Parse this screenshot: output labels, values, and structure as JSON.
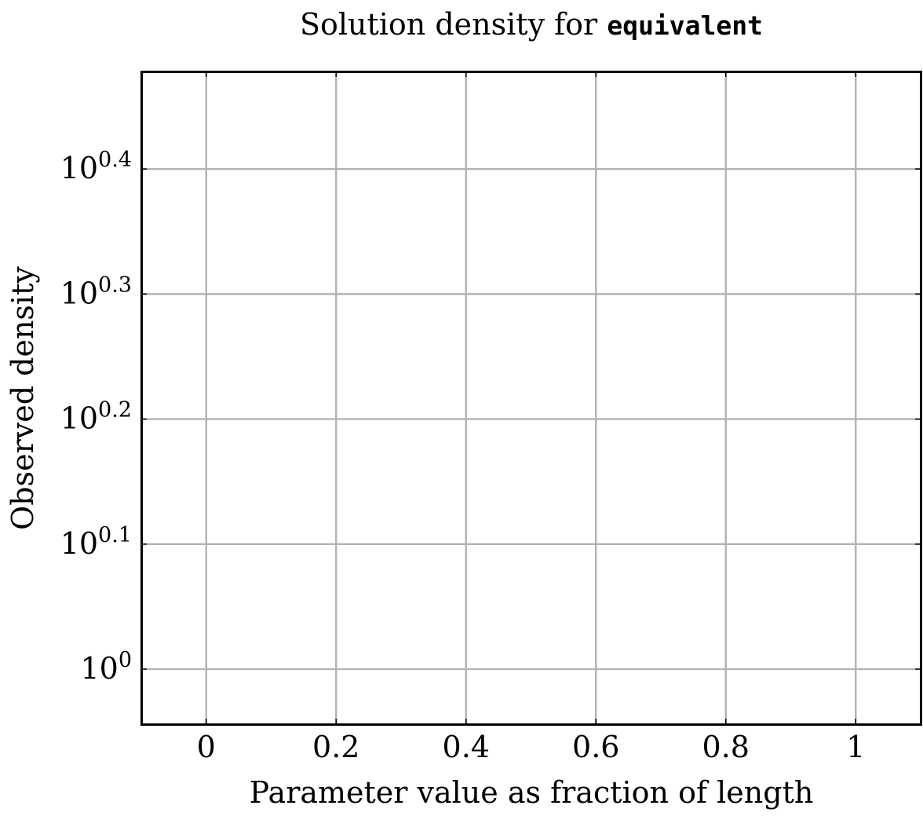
{
  "chart_data": {
    "type": "line",
    "title": "Solution density for",
    "title_code": "equivalent",
    "xlabel": "Parameter value as fraction of length",
    "ylabel": "Observed density",
    "xlim": [
      -0.1,
      1.1
    ],
    "ylim_log10": [
      -0.044,
      0.478
    ],
    "yscale": "log",
    "grid": true,
    "x_ticks": [
      {
        "value": 0,
        "label": "0"
      },
      {
        "value": 0.2,
        "label": "0.2"
      },
      {
        "value": 0.4,
        "label": "0.4"
      },
      {
        "value": 0.6,
        "label": "0.6"
      },
      {
        "value": 0.8,
        "label": "0.8"
      },
      {
        "value": 1,
        "label": "1"
      }
    ],
    "y_ticks": [
      {
        "exponent": 0,
        "base": "10",
        "exp": "0"
      },
      {
        "exponent": 0.1,
        "base": "10",
        "exp": "0.1"
      },
      {
        "exponent": 0.2,
        "base": "10",
        "exp": "0.2"
      },
      {
        "exponent": 0.3,
        "base": "10",
        "exp": "0.3"
      },
      {
        "exponent": 0.4,
        "base": "10",
        "exp": "0.4"
      }
    ],
    "series": []
  }
}
